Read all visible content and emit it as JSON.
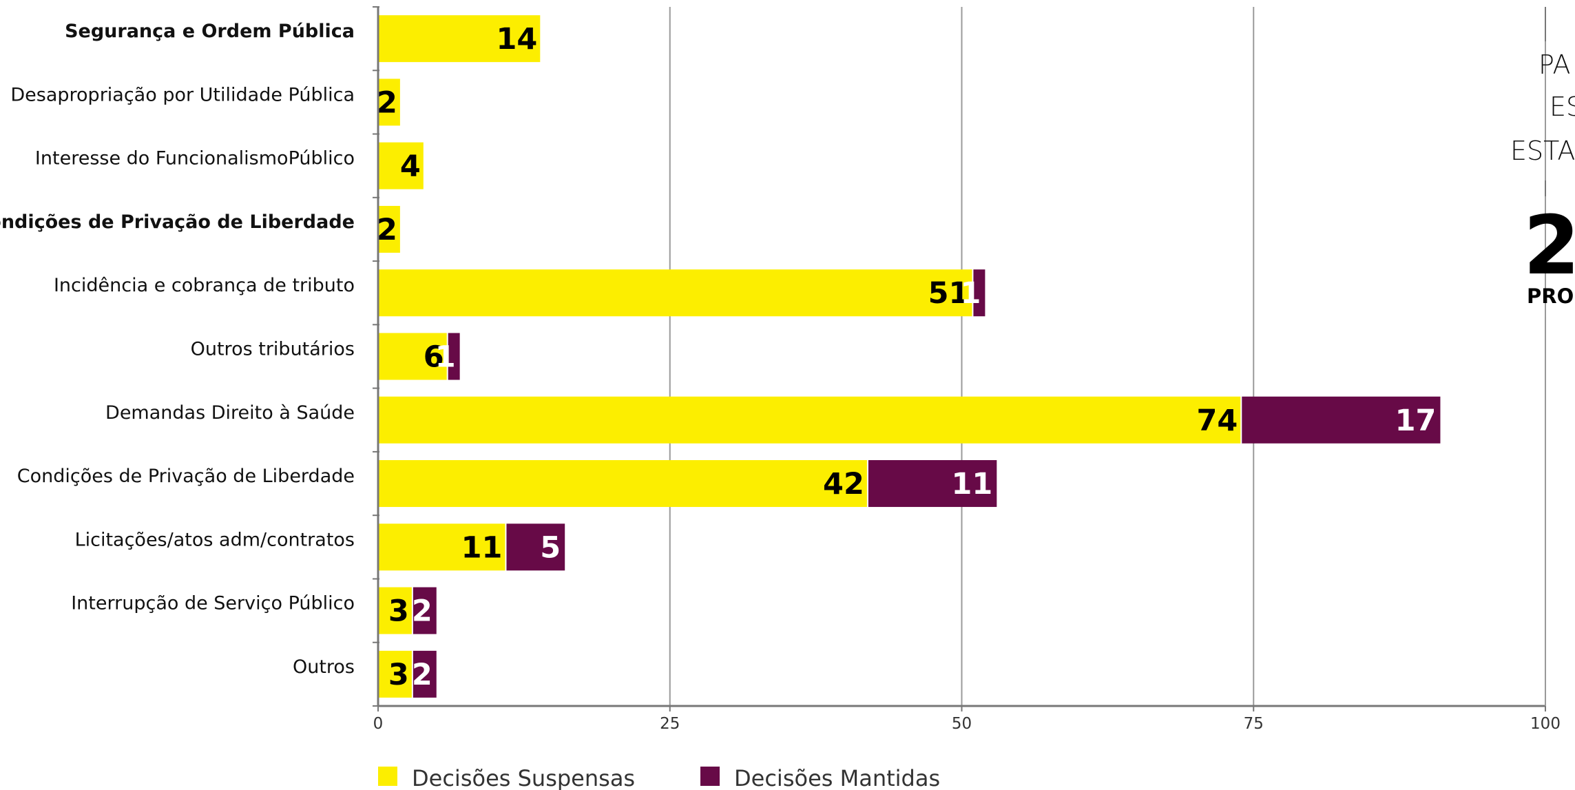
{
  "chart_data": {
    "type": "bar",
    "orientation": "horizontal",
    "stacked": true,
    "categories": [
      "Segurança e Ordem Pública ",
      "Desapropriação por Utilidade Pública ",
      "Interesse do FuncionalismoPúblico",
      "Condições de Privação de Liberdade",
      "Incidência e cobrança de tributo",
      "Outros tributários",
      "Demandas Direito à Saúde",
      "Condições de Privação de Liberdade",
      "Licitações/atos adm/contratos",
      "Interrupção de Serviço Público",
      "Outros"
    ],
    "bold_categories": [
      0,
      3
    ],
    "series": [
      {
        "name": "Decisões Suspensas",
        "color": "#FCEE00",
        "label_color": "#000000",
        "values": [
          14,
          2,
          4,
          2,
          51,
          6,
          74,
          42,
          11,
          3,
          3
        ]
      },
      {
        "name": "Decisões Mantidas",
        "color": "#670A47",
        "label_color": "#FFFFFF",
        "values": [
          0,
          0,
          0,
          0,
          1,
          1,
          17,
          11,
          5,
          2,
          2
        ]
      }
    ],
    "xlim": [
      0,
      100
    ],
    "xticks": [
      "0",
      "25",
      "50",
      "75",
      "100"
    ],
    "grid": true,
    "legend_position": "bottom-left"
  },
  "side_panel": {
    "line1": "PA",
    "line2": "ES",
    "line3": "ESTA",
    "big_value": "2",
    "bold_label": "PRO"
  }
}
